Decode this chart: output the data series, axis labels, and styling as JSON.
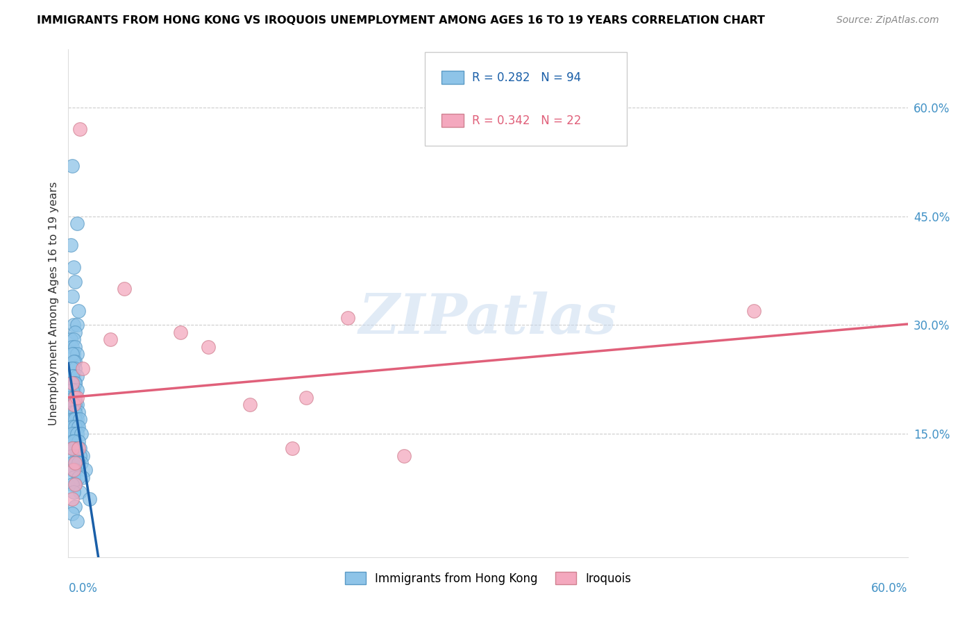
{
  "title": "IMMIGRANTS FROM HONG KONG VS IROQUOIS UNEMPLOYMENT AMONG AGES 16 TO 19 YEARS CORRELATION CHART",
  "source": "Source: ZipAtlas.com",
  "ylabel": "Unemployment Among Ages 16 to 19 years",
  "ytick_values": [
    0.15,
    0.3,
    0.45,
    0.6
  ],
  "xlim": [
    0.0,
    0.6
  ],
  "ylim": [
    -0.02,
    0.68
  ],
  "legend_r_blue": "R = 0.282",
  "legend_n_blue": "N = 94",
  "legend_r_pink": "R = 0.342",
  "legend_n_pink": "N = 22",
  "legend_label_blue": "Immigrants from Hong Kong",
  "legend_label_pink": "Iroquois",
  "watermark": "ZIPatlas",
  "blue_color": "#8ec4e8",
  "pink_color": "#f4a8be",
  "blue_line_color": "#1a5fa8",
  "pink_line_color": "#e0607a",
  "dash_color": "#a0b8d8",
  "blue_scatter_x": [
    0.003,
    0.006,
    0.002,
    0.004,
    0.005,
    0.003,
    0.007,
    0.004,
    0.006,
    0.005,
    0.002,
    0.004,
    0.003,
    0.005,
    0.004,
    0.006,
    0.003,
    0.005,
    0.004,
    0.002,
    0.005,
    0.003,
    0.004,
    0.006,
    0.003,
    0.005,
    0.004,
    0.002,
    0.005,
    0.003,
    0.004,
    0.006,
    0.003,
    0.005,
    0.004,
    0.002,
    0.005,
    0.004,
    0.003,
    0.006,
    0.004,
    0.005,
    0.003,
    0.007,
    0.004,
    0.005,
    0.003,
    0.006,
    0.004,
    0.005,
    0.008,
    0.004,
    0.006,
    0.003,
    0.005,
    0.007,
    0.004,
    0.005,
    0.003,
    0.006,
    0.009,
    0.005,
    0.003,
    0.007,
    0.004,
    0.006,
    0.005,
    0.003,
    0.008,
    0.004,
    0.01,
    0.006,
    0.003,
    0.008,
    0.004,
    0.009,
    0.005,
    0.003,
    0.007,
    0.004,
    0.012,
    0.005,
    0.003,
    0.01,
    0.004,
    0.007,
    0.005,
    0.003,
    0.008,
    0.004,
    0.015,
    0.005,
    0.003,
    0.006
  ],
  "blue_scatter_y": [
    0.52,
    0.44,
    0.41,
    0.38,
    0.36,
    0.34,
    0.32,
    0.3,
    0.3,
    0.29,
    0.28,
    0.28,
    0.27,
    0.27,
    0.26,
    0.26,
    0.26,
    0.25,
    0.25,
    0.24,
    0.24,
    0.24,
    0.23,
    0.23,
    0.23,
    0.22,
    0.22,
    0.22,
    0.22,
    0.21,
    0.21,
    0.21,
    0.21,
    0.2,
    0.2,
    0.2,
    0.2,
    0.2,
    0.19,
    0.19,
    0.19,
    0.19,
    0.18,
    0.18,
    0.18,
    0.18,
    0.17,
    0.17,
    0.17,
    0.17,
    0.17,
    0.16,
    0.16,
    0.16,
    0.16,
    0.16,
    0.15,
    0.15,
    0.15,
    0.15,
    0.15,
    0.14,
    0.14,
    0.14,
    0.14,
    0.13,
    0.13,
    0.13,
    0.13,
    0.13,
    0.12,
    0.12,
    0.12,
    0.12,
    0.11,
    0.11,
    0.11,
    0.11,
    0.11,
    0.1,
    0.1,
    0.1,
    0.1,
    0.09,
    0.09,
    0.09,
    0.08,
    0.08,
    0.07,
    0.07,
    0.06,
    0.05,
    0.04,
    0.03
  ],
  "pink_scatter_x": [
    0.003,
    0.005,
    0.004,
    0.008,
    0.004,
    0.006,
    0.003,
    0.005,
    0.04,
    0.01,
    0.03,
    0.08,
    0.1,
    0.13,
    0.16,
    0.2,
    0.17,
    0.24,
    0.49,
    0.007,
    0.005,
    0.003
  ],
  "pink_scatter_y": [
    0.22,
    0.2,
    0.19,
    0.57,
    0.1,
    0.2,
    0.13,
    0.08,
    0.35,
    0.24,
    0.28,
    0.29,
    0.27,
    0.19,
    0.13,
    0.31,
    0.2,
    0.12,
    0.32,
    0.13,
    0.11,
    0.06
  ]
}
